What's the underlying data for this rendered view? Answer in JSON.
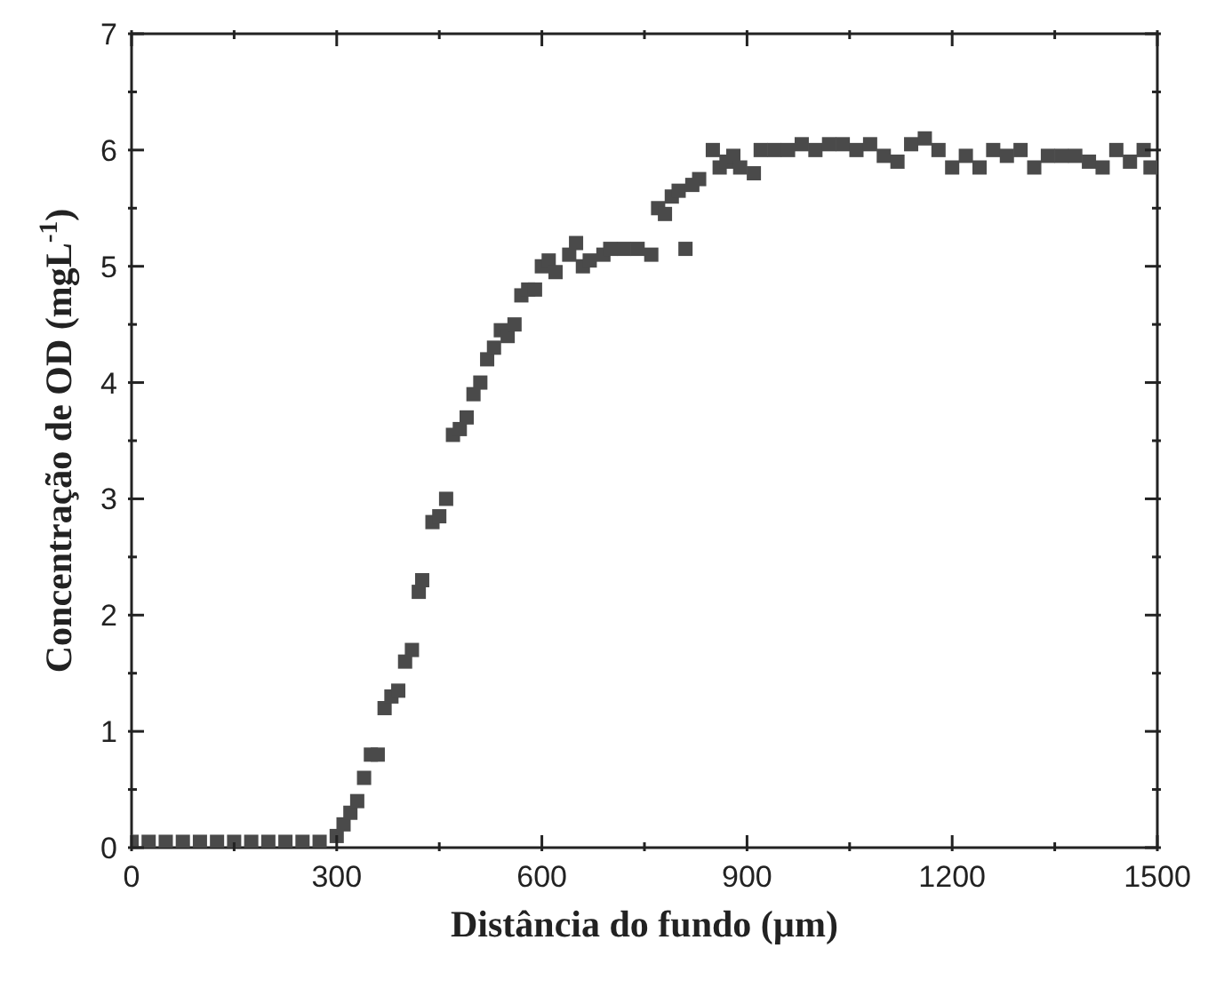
{
  "chart_data": {
    "type": "scatter",
    "xlabel": "Distância do fundo (µm)",
    "ylabel": "Concentração de OD (mgL$^{-1}$)",
    "x": [
      0,
      25,
      50,
      75,
      100,
      125,
      150,
      175,
      200,
      225,
      250,
      275,
      300,
      310,
      320,
      330,
      340,
      350,
      360,
      370,
      380,
      390,
      400,
      410,
      420,
      425,
      440,
      450,
      460,
      470,
      480,
      490,
      500,
      510,
      520,
      530,
      540,
      550,
      560,
      570,
      580,
      590,
      600,
      610,
      620,
      640,
      650,
      660,
      670,
      690,
      700,
      720,
      740,
      760,
      770,
      780,
      790,
      800,
      810,
      820,
      830,
      850,
      860,
      870,
      880,
      890,
      910,
      920,
      940,
      960,
      980,
      1000,
      1020,
      1040,
      1060,
      1080,
      1100,
      1120,
      1140,
      1160,
      1180,
      1200,
      1220,
      1240,
      1260,
      1280,
      1300,
      1320,
      1340,
      1360,
      1380,
      1400,
      1420,
      1440,
      1460,
      1480,
      1490
    ],
    "series": [
      {
        "color": "#4a4a4a",
        "values": [
          0.05,
          0.05,
          0.05,
          0.05,
          0.05,
          0.05,
          0.05,
          0.05,
          0.05,
          0.05,
          0.05,
          0.05,
          0.1,
          0.2,
          0.3,
          0.4,
          0.6,
          0.8,
          0.8,
          1.2,
          1.3,
          1.35,
          1.6,
          1.7,
          2.2,
          2.3,
          2.8,
          2.85,
          3.0,
          3.55,
          3.6,
          3.7,
          3.9,
          4.0,
          4.2,
          4.3,
          4.45,
          4.4,
          4.5,
          4.75,
          4.8,
          4.8,
          5.0,
          5.05,
          4.95,
          5.1,
          5.2,
          5.0,
          5.05,
          5.1,
          5.15,
          5.15,
          5.15,
          5.1,
          5.5,
          5.45,
          5.6,
          5.65,
          5.15,
          5.7,
          5.75,
          6.0,
          5.85,
          5.9,
          5.95,
          5.85,
          5.8,
          6.0,
          6.0,
          6.0,
          6.05,
          6.0,
          6.05,
          6.05,
          6.0,
          6.05,
          5.95,
          5.9,
          6.05,
          6.1,
          6.0,
          5.85,
          5.95,
          5.85,
          6.0,
          5.95,
          6.0,
          5.85,
          5.95,
          5.95,
          5.95,
          5.9,
          5.85,
          6.0,
          5.9,
          6.0,
          5.85
        ]
      }
    ],
    "xlim": [
      0,
      1500
    ],
    "xticks": [
      0,
      {
        "value": 150,
        "label": null
      },
      300,
      {
        "value": 450,
        "label": null
      },
      600,
      {
        "value": 750,
        "label": null
      },
      900,
      {
        "value": 1050,
        "label": null
      },
      1200,
      {
        "value": 1350,
        "label": null
      },
      1500
    ],
    "ylim": [
      0,
      7
    ],
    "yticks": [
      0,
      {
        "value": 0.5,
        "label": null
      },
      1,
      {
        "value": 1.5,
        "label": null
      },
      2,
      {
        "value": 2.5,
        "label": null
      },
      3,
      {
        "value": 3.5,
        "label": null
      },
      4,
      {
        "value": 4.5,
        "label": null
      },
      5,
      {
        "value": 5.5,
        "label": null
      },
      6,
      {
        "value": 6.5,
        "label": null
      },
      7
    ],
    "marker": "square",
    "legend": false
  }
}
